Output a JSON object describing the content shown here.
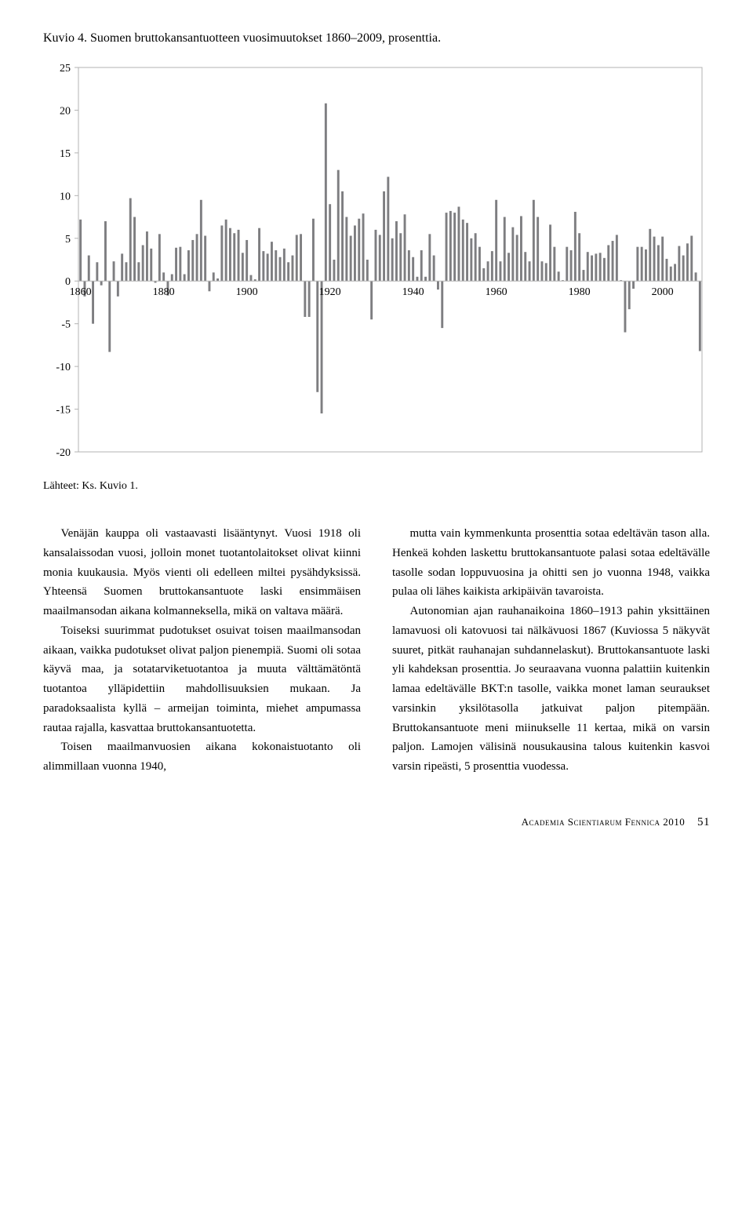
{
  "chart": {
    "title": "Kuvio 4. Suomen bruttokansantuotteen vuosimuutokset 1860–2009, prosenttia.",
    "type": "bar",
    "y": {
      "min": -20,
      "max": 25,
      "step": 5,
      "ticks": [
        -20,
        -15,
        -10,
        -5,
        0,
        5,
        10,
        15,
        20,
        25
      ]
    },
    "x": {
      "min": 1860,
      "max": 2009,
      "labels": [
        1860,
        1880,
        1900,
        1920,
        1940,
        1960,
        1980,
        2000
      ]
    },
    "bar_color": "#7e7e81",
    "tick_color": "#b3b3b3",
    "axis_color": "#b3b3b3",
    "label_color": "#000000",
    "tick_fontsize": 14,
    "values": [
      7.2,
      -1.8,
      3,
      -5,
      2.2,
      -0.5,
      7,
      -8.3,
      2.3,
      -1.8,
      3.2,
      2.2,
      9.7,
      7.5,
      2.2,
      4.2,
      5.8,
      3.8,
      -0.2,
      5.5,
      1,
      -1.7,
      0.8,
      3.9,
      4,
      0.8,
      3.6,
      4.8,
      5.5,
      9.5,
      5.3,
      -1.2,
      1,
      0.3,
      6.5,
      7.2,
      6.2,
      5.6,
      6,
      3.3,
      4.8,
      0.7,
      0.2,
      6.2,
      3.5,
      3.2,
      4.6,
      3.6,
      2.8,
      3.8,
      2.2,
      3,
      5.4,
      5.5,
      -4.2,
      -4.2,
      7.3,
      -13,
      -15.5,
      20.8,
      9,
      2.5,
      13,
      10.5,
      7.5,
      5.3,
      6.5,
      7.3,
      7.9,
      2.5,
      -4.5,
      6,
      5.4,
      10.5,
      12.2,
      5,
      7,
      5.6,
      7.8,
      3.6,
      2.8,
      0.5,
      3.6,
      0.5,
      5.5,
      3,
      -1,
      -5.5,
      8,
      8.2,
      8,
      8.7,
      7.2,
      6.8,
      5,
      5.6,
      4,
      1.5,
      2.3,
      3.5,
      9.5,
      2.3,
      7.5,
      3.3,
      6.3,
      5.4,
      7.6,
      3.4,
      2.3,
      9.5,
      7.5,
      2.3,
      2.1,
      6.6,
      4,
      1.1,
      0.1,
      4,
      3.6,
      8.1,
      5.6,
      1.3,
      3.4,
      3,
      3.2,
      3.3,
      2.7,
      4.2,
      4.7,
      5.4,
      0.1,
      -6,
      -3.3,
      -0.9,
      4,
      4,
      3.7,
      6.1,
      5.2,
      4.2,
      5.2,
      2.6,
      1.7,
      2,
      4.1,
      3,
      4.4,
      5.3,
      1,
      -8.2
    ]
  },
  "source": "Lähteet: Ks. Kuvio 1.",
  "text": {
    "left": [
      "Venäjän kauppa oli vastaavasti lisääntynyt. Vuosi 1918 oli kansalaissodan vuosi, jolloin monet tuotantolaitokset olivat kiinni monia kuukausia. Myös vienti oli edelleen miltei pysähdyksissä. Yhteensä Suomen bruttokansantuote laski ensimmäisen maailmansodan aikana kolmanneksella, mikä on valtava määrä.",
      "Toiseksi suurimmat pudotukset osuivat toisen maailmansodan aikaan, vaikka pudotukset olivat paljon pienempiä. Suomi oli sotaa käyvä maa, ja sotatarviketuotantoa ja muuta välttämätöntä tuotantoa ylläpidettiin mahdollisuuksien mukaan. Ja paradoksaalista kyllä – armeijan toiminta, miehet ampumassa rautaa rajalla, kasvattaa bruttokansantuotetta.",
      "Toisen maailmanvuosien aikana kokonaistuotanto oli alimmillaan vuonna 1940,"
    ],
    "right": [
      "mutta vain kymmenkunta prosenttia sotaa edeltävän tason alla. Henkeä kohden laskettu bruttokansantuote palasi sotaa edeltävälle tasolle sodan loppuvuosina ja ohitti sen jo vuonna 1948, vaikka pulaa oli lähes kaikista arkipäivän tavaroista.",
      "Autonomian ajan rauhanaikoina 1860–1913 pahin yksittäinen lamavuosi oli katovuosi tai nälkävuosi 1867 (Kuviossa 5 näkyvät suuret, pitkät rauhanajan suhdannelaskut). Bruttokansantuote laski yli kahdeksan prosenttia. Jo seuraavana vuonna palattiin kuitenkin lamaa edeltävälle BKT:n tasolle, vaikka monet laman seuraukset varsinkin yksilötasolla jatkuivat paljon pitempään. Bruttokansantuote meni miinukselle 11 kertaa, mikä on varsin paljon. Lamojen välisinä nousukausina talous kuitenkin kasvoi varsin ripeästi, 5 prosenttia vuodessa."
    ]
  },
  "footer": {
    "pub": "Academia Scientiarum Fennica 2010",
    "page": "51"
  }
}
